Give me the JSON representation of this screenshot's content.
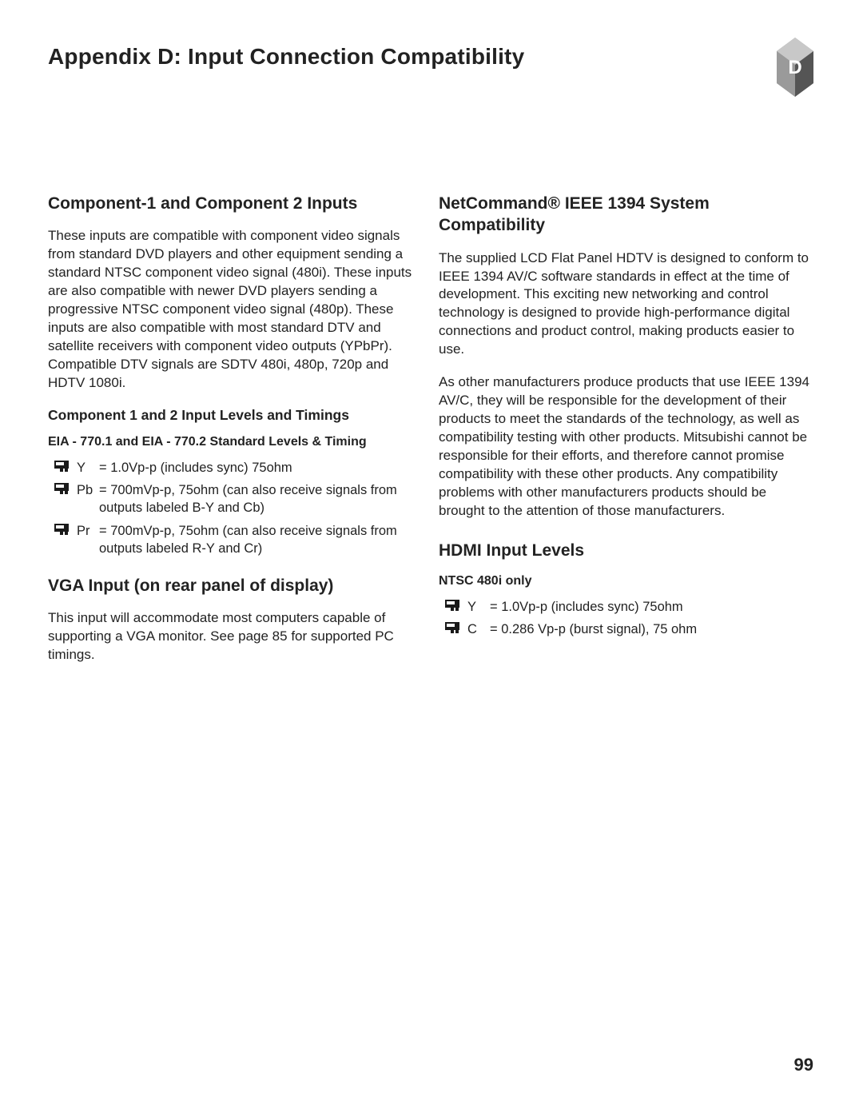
{
  "page": {
    "title": "Appendix D: Input Connection Compatibility",
    "badge_letter": "D",
    "page_number": "99"
  },
  "left": {
    "s1_heading": "Component-1 and Component 2 Inputs",
    "s1_body": "These inputs are compatible with component video signals from standard DVD players and other equipment sending a standard NTSC component video signal (480i).  These inputs are also compatible with newer DVD players sending a progressive NTSC component video signal (480p).  These inputs are also compatible with most standard DTV and satellite receivers with component video outputs (YPbPr). Compatible DTV signals are SDTV 480i, 480p, 720p and HDTV 1080i.",
    "s1_sub": "Component 1 and 2 Input Levels and Timings",
    "s1_sub2": "EIA - 770.1 and EIA - 770.2 Standard Levels & Timing",
    "s1_items": [
      {
        "term": "Y",
        "def": "= 1.0Vp-p (includes sync) 75ohm"
      },
      {
        "term": "Pb",
        "def": "= 700mVp-p, 75ohm (can also receive signals from outputs labeled B-Y and Cb)"
      },
      {
        "term": "Pr",
        "def": "= 700mVp-p, 75ohm (can also receive signals from outputs labeled R-Y and Cr)"
      }
    ],
    "s2_heading": "VGA Input (on rear panel of display)",
    "s2_body": "This input will accommodate most computers capable of supporting a VGA monitor.  See page 85 for supported PC timings."
  },
  "right": {
    "s1_heading": "NetCommand® IEEE 1394 System Compatibility",
    "s1_body1": "The supplied LCD Flat Panel HDTV is designed to conform to IEEE 1394 AV/C software standards in effect at the time of development.  This exciting new networking and control technology is designed to provide high-performance digital connections and product control, making products easier to use.",
    "s1_body2": "As other manufacturers produce products that use IEEE 1394 AV/C, they will be responsible for the development of their products to meet the standards of the technology, as well as compatibility testing with other products.  Mitsubishi cannot be responsible for their efforts, and therefore cannot promise compatibility with these other products.  Any compatibility problems with other manufacturers products should be brought to the attention of those manufacturers.",
    "s2_heading": "HDMI Input Levels",
    "s2_sub": "NTSC 480i only",
    "s2_items": [
      {
        "term": "Y",
        "def": "= 1.0Vp-p (includes sync) 75ohm"
      },
      {
        "term": "C",
        "def": "= 0.286 Vp-p (burst signal), 75 ohm"
      }
    ]
  },
  "style": {
    "badge_colors": {
      "mid": "#8f8f8f",
      "dark": "#555555",
      "light": "#c8c8c8",
      "letter": "#ffffff"
    },
    "bullet_colors": {
      "outer": "#1a1a1a",
      "inner": "#ffffff"
    }
  }
}
